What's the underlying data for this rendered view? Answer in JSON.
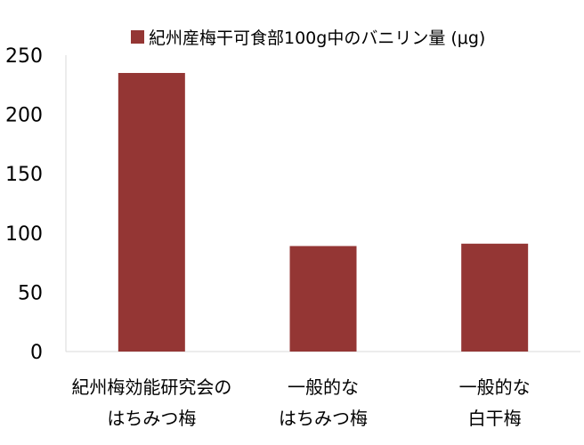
{
  "chart_data": {
    "type": "bar",
    "title": "",
    "xlabel": "",
    "ylabel": "",
    "legend": {
      "position": "top",
      "entries": [
        "紀州産梅干可食部100g中のバニリン量 (μg)"
      ]
    },
    "categories": [
      [
        "紀州梅効能研究会の",
        "はちみつ梅"
      ],
      [
        "一般的な",
        "はちみつ梅"
      ],
      [
        "一般的な",
        "白干梅"
      ]
    ],
    "series": [
      {
        "name": "紀州産梅干可食部100g中のバニリン量 (μg)",
        "color": "#943634",
        "values": [
          235,
          89,
          91
        ]
      }
    ],
    "ylim": [
      0,
      250
    ],
    "yticks": [
      0,
      50,
      100,
      150,
      200,
      250
    ],
    "grid": false
  }
}
